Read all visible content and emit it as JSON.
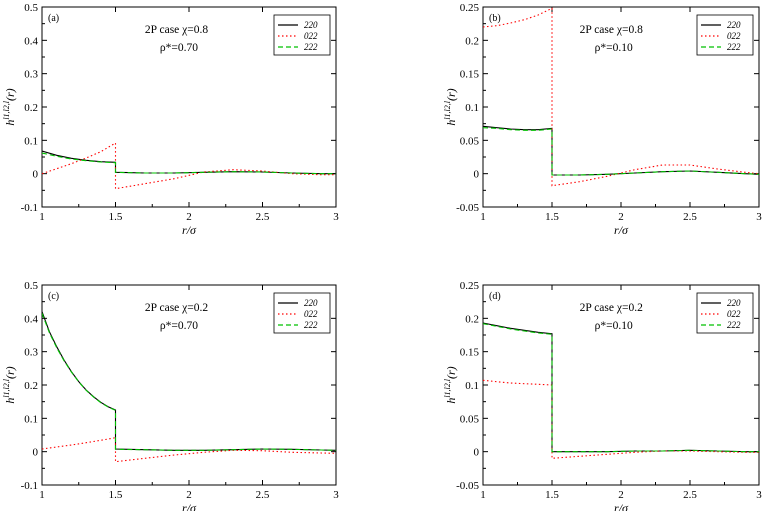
{
  "chart_data": [
    {
      "type": "line",
      "panel_label": "(a)",
      "annotation": [
        "2P case χ=0.8",
        "ρ*=0.70"
      ],
      "xlabel": "r/σ",
      "ylabel": "h^{l1l2l}(r)",
      "xlim": [
        1,
        3
      ],
      "ylim": [
        -0.1,
        0.5
      ],
      "xticks": [
        1,
        1.5,
        2,
        2.5,
        3
      ],
      "xtick_labels": [
        "1",
        "1.5",
        "2",
        "2.5",
        "3"
      ],
      "yticks": [
        -0.1,
        0,
        0.1,
        0.2,
        0.3,
        0.4,
        0.5
      ],
      "ytick_labels": [
        "-0.1",
        "0",
        "0.1",
        "0.2",
        "0.3",
        "0.4",
        "0.5"
      ],
      "grid": false,
      "legend_position": "top-right",
      "series": [
        {
          "name": "220",
          "color": "#000000",
          "style": "solid",
          "x": [
            1.0,
            1.1,
            1.2,
            1.3,
            1.4,
            1.5,
            1.5,
            1.7,
            1.9,
            2.1,
            2.3,
            2.5,
            2.7,
            2.9,
            3.0
          ],
          "y": [
            0.068,
            0.055,
            0.046,
            0.04,
            0.036,
            0.034,
            0.004,
            0.002,
            0.002,
            0.004,
            0.006,
            0.005,
            0.002,
            0.0,
            0.0
          ]
        },
        {
          "name": "022",
          "color": "#ff0000",
          "style": "dotted",
          "x": [
            1.0,
            1.1,
            1.2,
            1.3,
            1.4,
            1.5,
            1.5,
            1.7,
            1.9,
            2.1,
            2.3,
            2.5,
            2.7,
            2.9,
            3.0
          ],
          "y": [
            0.0,
            0.015,
            0.03,
            0.047,
            0.066,
            0.092,
            -0.045,
            -0.03,
            -0.015,
            0.005,
            0.012,
            0.008,
            0.0,
            -0.003,
            -0.003
          ]
        },
        {
          "name": "222",
          "color": "#00c000",
          "style": "dashed",
          "x": [
            1.0,
            1.1,
            1.2,
            1.3,
            1.4,
            1.5,
            1.5,
            1.7,
            1.9,
            2.1,
            2.3,
            2.5,
            2.7,
            2.9,
            3.0
          ],
          "y": [
            0.062,
            0.052,
            0.044,
            0.039,
            0.035,
            0.033,
            0.004,
            0.002,
            0.002,
            0.004,
            0.006,
            0.005,
            0.002,
            0.0,
            0.0
          ]
        }
      ]
    },
    {
      "type": "line",
      "panel_label": "(b)",
      "annotation": [
        "2P case χ=0.8",
        "ρ*=0.10"
      ],
      "xlabel": "r/σ",
      "ylabel": "h^{l1l2l}(r)",
      "xlim": [
        1,
        3
      ],
      "ylim": [
        -0.05,
        0.25
      ],
      "xticks": [
        1,
        1.5,
        2,
        2.5,
        3
      ],
      "xtick_labels": [
        "1",
        "1.5",
        "2",
        "2.5",
        "3"
      ],
      "yticks": [
        -0.05,
        0,
        0.05,
        0.1,
        0.15,
        0.2,
        0.25
      ],
      "ytick_labels": [
        "-0.05",
        "0",
        "0.05",
        "0.1",
        "0.15",
        "0.2",
        "0.25"
      ],
      "grid": false,
      "legend_position": "top-right",
      "series": [
        {
          "name": "220",
          "color": "#000000",
          "style": "solid",
          "x": [
            1.0,
            1.1,
            1.2,
            1.3,
            1.4,
            1.5,
            1.5,
            1.7,
            1.9,
            2.1,
            2.3,
            2.5,
            2.7,
            2.9,
            3.0
          ],
          "y": [
            0.071,
            0.069,
            0.067,
            0.066,
            0.066,
            0.068,
            -0.002,
            -0.002,
            -0.001,
            0.001,
            0.003,
            0.004,
            0.002,
            0.0,
            -0.001
          ]
        },
        {
          "name": "022",
          "color": "#ff0000",
          "style": "dotted",
          "x": [
            1.0,
            1.1,
            1.2,
            1.3,
            1.4,
            1.5,
            1.5,
            1.7,
            1.9,
            2.1,
            2.3,
            2.5,
            2.7,
            2.9,
            3.0
          ],
          "y": [
            0.22,
            0.222,
            0.226,
            0.231,
            0.238,
            0.248,
            -0.018,
            -0.012,
            -0.004,
            0.006,
            0.013,
            0.013,
            0.007,
            0.002,
            0.0
          ]
        },
        {
          "name": "222",
          "color": "#00c000",
          "style": "dashed",
          "x": [
            1.0,
            1.1,
            1.2,
            1.3,
            1.4,
            1.5,
            1.5,
            1.7,
            1.9,
            2.1,
            2.3,
            2.5,
            2.7,
            2.9,
            3.0
          ],
          "y": [
            0.069,
            0.068,
            0.066,
            0.065,
            0.065,
            0.067,
            -0.002,
            -0.002,
            -0.001,
            0.001,
            0.003,
            0.004,
            0.002,
            0.0,
            -0.001
          ]
        }
      ]
    },
    {
      "type": "line",
      "panel_label": "(c)",
      "annotation": [
        "2P case χ=0.2",
        "ρ*=0.70"
      ],
      "xlabel": "r/σ",
      "ylabel": "h^{l1l2l}(r)",
      "xlim": [
        1,
        3
      ],
      "ylim": [
        -0.1,
        0.5
      ],
      "xticks": [
        1,
        1.5,
        2,
        2.5,
        3
      ],
      "xtick_labels": [
        "1",
        "1.5",
        "2",
        "2.5",
        "3"
      ],
      "yticks": [
        -0.1,
        0,
        0.1,
        0.2,
        0.3,
        0.4,
        0.5
      ],
      "ytick_labels": [
        "-0.1",
        "0",
        "0.1",
        "0.2",
        "0.3",
        "0.4",
        "0.5"
      ],
      "grid": false,
      "legend_position": "top-right",
      "series": [
        {
          "name": "220",
          "color": "#000000",
          "style": "solid",
          "x": [
            1.0,
            1.05,
            1.1,
            1.15,
            1.2,
            1.25,
            1.3,
            1.35,
            1.4,
            1.45,
            1.5,
            1.5,
            1.7,
            1.9,
            2.1,
            2.3,
            2.5,
            2.7,
            2.9,
            3.0
          ],
          "y": [
            0.42,
            0.36,
            0.315,
            0.275,
            0.24,
            0.21,
            0.185,
            0.165,
            0.148,
            0.135,
            0.125,
            0.008,
            0.006,
            0.004,
            0.004,
            0.006,
            0.008,
            0.007,
            0.005,
            0.004
          ]
        },
        {
          "name": "022",
          "color": "#ff0000",
          "style": "dotted",
          "x": [
            1.0,
            1.1,
            1.2,
            1.3,
            1.4,
            1.5,
            1.5,
            1.7,
            1.9,
            2.1,
            2.3,
            2.5,
            2.7,
            2.9,
            3.0
          ],
          "y": [
            0.008,
            0.014,
            0.02,
            0.027,
            0.034,
            0.042,
            -0.03,
            -0.02,
            -0.01,
            -0.002,
            0.004,
            0.003,
            -0.002,
            -0.004,
            -0.005
          ]
        },
        {
          "name": "222",
          "color": "#00c000",
          "style": "dashed",
          "x": [
            1.0,
            1.05,
            1.1,
            1.15,
            1.2,
            1.25,
            1.3,
            1.35,
            1.4,
            1.45,
            1.5,
            1.5,
            1.7,
            1.9,
            2.1,
            2.3,
            2.5,
            2.7,
            2.9,
            3.0
          ],
          "y": [
            0.415,
            0.357,
            0.312,
            0.273,
            0.239,
            0.209,
            0.184,
            0.164,
            0.147,
            0.134,
            0.124,
            0.007,
            0.006,
            0.004,
            0.004,
            0.006,
            0.008,
            0.007,
            0.005,
            0.004
          ]
        }
      ]
    },
    {
      "type": "line",
      "panel_label": "(d)",
      "annotation": [
        "2P case χ=0.2",
        "ρ*=0.10"
      ],
      "xlabel": "r/σ",
      "ylabel": "h^{l1l2l}(r)",
      "xlim": [
        1,
        3
      ],
      "ylim": [
        -0.05,
        0.25
      ],
      "xticks": [
        1,
        1.5,
        2,
        2.5,
        3
      ],
      "xtick_labels": [
        "1",
        "1.5",
        "2",
        "2.5",
        "3"
      ],
      "yticks": [
        -0.05,
        0,
        0.05,
        0.1,
        0.15,
        0.2,
        0.25
      ],
      "ytick_labels": [
        "-0.05",
        "0",
        "0.05",
        "0.1",
        "0.15",
        "0.2",
        "0.25"
      ],
      "grid": false,
      "legend_position": "top-right",
      "series": [
        {
          "name": "220",
          "color": "#000000",
          "style": "solid",
          "x": [
            1.0,
            1.1,
            1.2,
            1.3,
            1.4,
            1.5,
            1.5,
            1.7,
            1.9,
            2.1,
            2.3,
            2.5,
            2.7,
            2.9,
            3.0
          ],
          "y": [
            0.193,
            0.189,
            0.185,
            0.182,
            0.179,
            0.177,
            0.0,
            0.0,
            0.0,
            0.001,
            0.001,
            0.002,
            0.001,
            0.0,
            0.0
          ]
        },
        {
          "name": "022",
          "color": "#ff0000",
          "style": "dotted",
          "x": [
            1.0,
            1.1,
            1.2,
            1.3,
            1.4,
            1.5,
            1.5,
            1.7,
            1.9,
            2.1,
            2.3,
            2.5,
            2.7,
            2.9,
            3.0
          ],
          "y": [
            0.107,
            0.105,
            0.103,
            0.102,
            0.101,
            0.1,
            -0.01,
            -0.007,
            -0.004,
            -0.001,
            0.001,
            0.001,
            0.0,
            -0.001,
            -0.001
          ]
        },
        {
          "name": "222",
          "color": "#00c000",
          "style": "dashed",
          "x": [
            1.0,
            1.1,
            1.2,
            1.3,
            1.4,
            1.5,
            1.5,
            1.7,
            1.9,
            2.1,
            2.3,
            2.5,
            2.7,
            2.9,
            3.0
          ],
          "y": [
            0.192,
            0.188,
            0.184,
            0.181,
            0.178,
            0.176,
            0.0,
            0.0,
            0.0,
            0.001,
            0.001,
            0.002,
            0.001,
            0.0,
            0.0
          ]
        }
      ]
    }
  ]
}
